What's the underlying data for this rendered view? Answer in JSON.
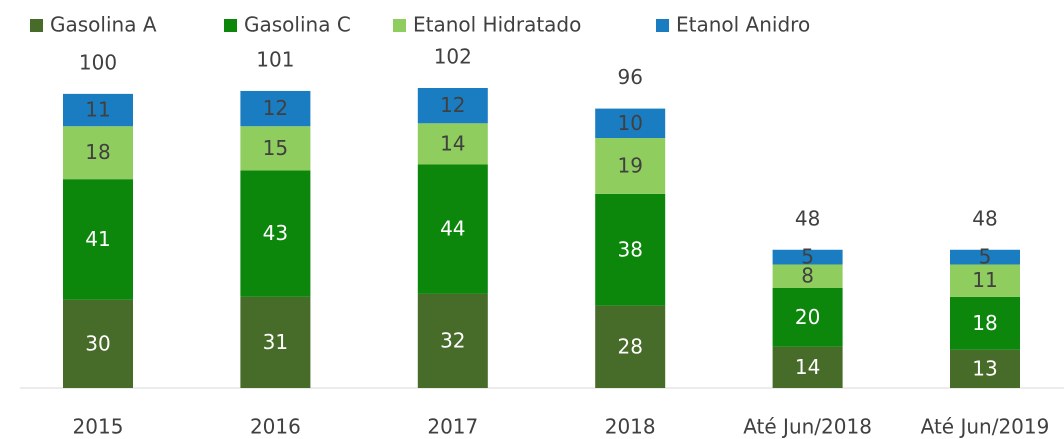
{
  "chart_data": {
    "type": "stacked-bar",
    "categories": [
      "2015",
      "2016",
      "2017",
      "2018",
      "Até Jun/2018",
      "Até Jun/2019"
    ],
    "series": [
      {
        "name": "Gasolina A",
        "color": "#476b29",
        "values": [
          30,
          31,
          32,
          28,
          14,
          13
        ]
      },
      {
        "name": "Gasolina C",
        "color": "#0c870c",
        "values": [
          41,
          43,
          44,
          38,
          20,
          18
        ]
      },
      {
        "name": "Etanol Hidratado",
        "color": "#8fcd5e",
        "values": [
          18,
          15,
          14,
          19,
          8,
          11
        ]
      },
      {
        "name": "Etanol Anidro",
        "color": "#1b7dc1",
        "values": [
          11,
          12,
          12,
          10,
          5,
          5
        ]
      }
    ],
    "totals": [
      100,
      101,
      102,
      96,
      48,
      48
    ],
    "legend": "top"
  }
}
